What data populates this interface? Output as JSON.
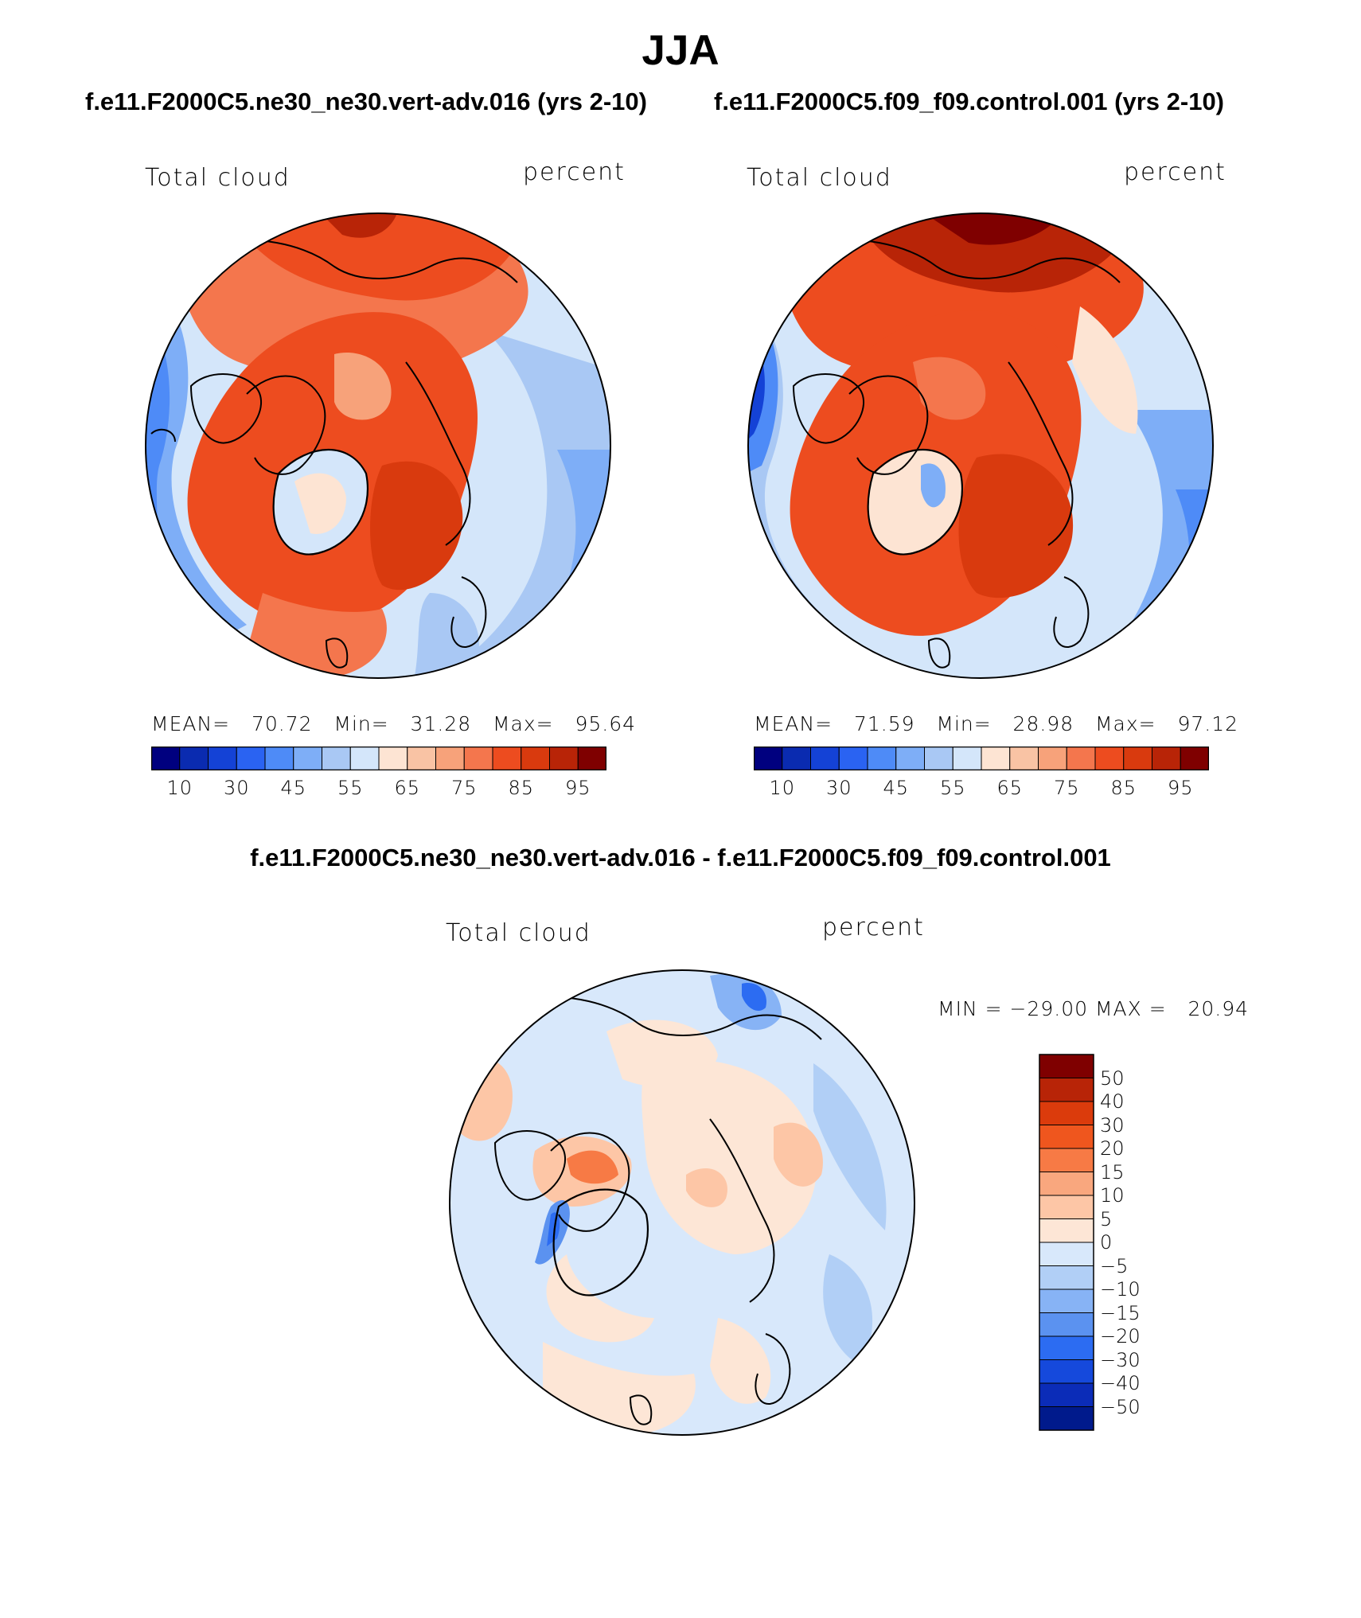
{
  "title": "JJA",
  "panels": [
    {
      "id": "left",
      "case_title": "f.e11.F2000C5.ne30_ne30.vert-adv.016 (yrs 2-10)",
      "variable": "Total cloud",
      "units": "percent",
      "stats": {
        "mean_label": "MEAN=",
        "mean": "70.72",
        "min_label": "Min=",
        "min": "31.28",
        "max_label": "Max=",
        "max": "95.64"
      },
      "colorbar_ticks": [
        "10",
        "30",
        "45",
        "55",
        "65",
        "75",
        "85",
        "95"
      ]
    },
    {
      "id": "right",
      "case_title": "f.e11.F2000C5.f09_f09.control.001 (yrs 2-10)",
      "variable": "Total cloud",
      "units": "percent",
      "stats": {
        "mean_label": "MEAN=",
        "mean": "71.59",
        "min_label": "Min=",
        "min": "28.98",
        "max_label": "Max=",
        "max": "97.12"
      },
      "colorbar_ticks": [
        "10",
        "30",
        "45",
        "55",
        "65",
        "75",
        "85",
        "95"
      ]
    }
  ],
  "diff_panel": {
    "case_title": "f.e11.F2000C5.ne30_ne30.vert-adv.016 - f.e11.F2000C5.f09_f09.control.001",
    "variable": "Total cloud",
    "units": "percent",
    "stats": "MIN = −29.00 MAX =   20.94",
    "colorbar_labels": [
      "50",
      "40",
      "30",
      "20",
      "15",
      "10",
      "5",
      "0",
      "−5",
      "−10",
      "−15",
      "−20",
      "−30",
      "−40",
      "−50"
    ]
  },
  "colors": {
    "seq_scale": [
      "#00007f",
      "#0a2bb0",
      "#1442d6",
      "#2a63f2",
      "#4e8bf7",
      "#7eaef7",
      "#a9c8f4",
      "#d4e6fa",
      "#fde4d3",
      "#f9c3a4",
      "#f7a27a",
      "#f4764d",
      "#ed4c1f",
      "#d93a0e",
      "#b82407",
      "#7f0000"
    ],
    "diff_scale": [
      "#7f0000",
      "#b82407",
      "#db3b0c",
      "#ef561e",
      "#f77a45",
      "#f9a77e",
      "#fdc6a6",
      "#fde6d6",
      "#d8e8fb",
      "#b1cff6",
      "#87b3f5",
      "#5b92f0",
      "#2c6cf2",
      "#1549dc",
      "#0b2cb8",
      "#001a8c"
    ]
  }
}
